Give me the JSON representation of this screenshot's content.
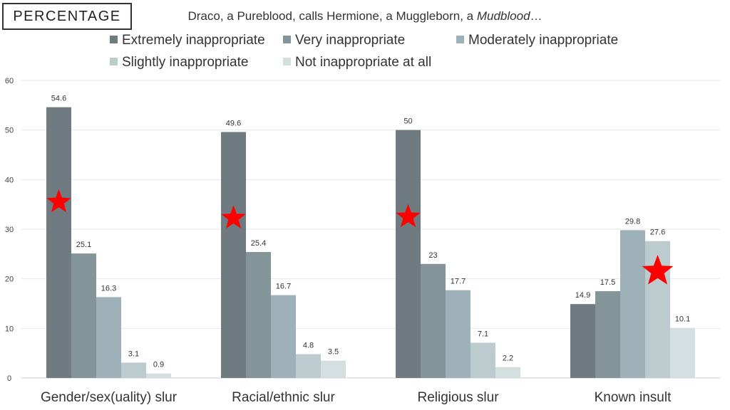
{
  "page_label": "PERCENTAGE",
  "chart_data": {
    "type": "bar",
    "title_plain": "Draco, a Pureblood, calls Hermione, a Muggleborn, a ",
    "title_italic": "Mudblood",
    "title_suffix": "…",
    "xlabel": "",
    "ylabel": "",
    "ylim": [
      0,
      60
    ],
    "yticks": [
      0,
      10,
      20,
      30,
      40,
      50,
      60
    ],
    "grid": true,
    "legend_position": "top",
    "categories": [
      "Gender/sex(uality) slur",
      "Racial/ethnic slur",
      "Religious slur",
      "Known insult"
    ],
    "series": [
      {
        "name": "Extremely inappropriate",
        "color": "#6f7b80",
        "values": [
          54.6,
          49.6,
          50,
          14.9
        ]
      },
      {
        "name": "Very inappropriate",
        "color": "#84959a",
        "values": [
          25.1,
          25.4,
          23,
          17.5
        ]
      },
      {
        "name": "Moderately inappropriate",
        "color": "#9fb1b8",
        "values": [
          16.3,
          16.7,
          17.7,
          29.8
        ]
      },
      {
        "name": "Slightly inappropriate",
        "color": "#bccbce",
        "values": [
          3.1,
          4.8,
          7.1,
          27.6
        ]
      },
      {
        "name": "Not inappropriate at all",
        "color": "#d4dfe1",
        "values": [
          0.9,
          3.5,
          2.2,
          10.1
        ]
      }
    ],
    "highlight_color": "#ff0000",
    "highlights": [
      {
        "category": 0,
        "series": 0
      },
      {
        "category": 1,
        "series": 0
      },
      {
        "category": 2,
        "series": 0
      },
      {
        "category": 3,
        "series": 3
      }
    ]
  }
}
